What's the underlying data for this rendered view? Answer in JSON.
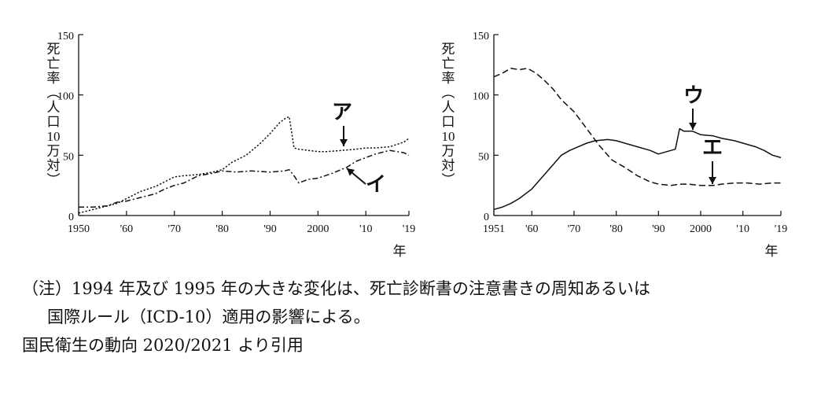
{
  "chart_data": [
    {
      "type": "line",
      "ylabel": [
        "死",
        "亡",
        "率",
        "︵",
        "人",
        "口",
        "10",
        "万",
        "対",
        "︶"
      ],
      "xunit": "年",
      "ylim": [
        0,
        150
      ],
      "yticks": [
        "0",
        "50",
        "100",
        "150"
      ],
      "xlim": [
        1950,
        2019
      ],
      "xticks": [
        {
          "value": 1950,
          "label": "1950"
        },
        {
          "value": 1960,
          "label": "'60"
        },
        {
          "value": 1970,
          "label": "'70"
        },
        {
          "value": 1980,
          "label": "'80"
        },
        {
          "value": 1990,
          "label": "'90"
        },
        {
          "value": 2000,
          "label": "2000"
        },
        {
          "value": 2010,
          "label": "'10"
        },
        {
          "value": 2019,
          "label": "'19"
        }
      ],
      "series": [
        {
          "style": "dotted",
          "x": [
            1950,
            1952,
            1955,
            1958,
            1960,
            1963,
            1966,
            1968,
            1970,
            1972,
            1975,
            1978,
            1980,
            1982,
            1985,
            1988,
            1990,
            1992,
            1993,
            1994,
            1995,
            1996,
            1998,
            2000,
            2002,
            2005,
            2008,
            2010,
            2012,
            2015,
            2018,
            2019
          ],
          "y": [
            2,
            4,
            7,
            10,
            14,
            20,
            24,
            28,
            32,
            33,
            34,
            36,
            38,
            44,
            50,
            60,
            68,
            77,
            80,
            82,
            56,
            55,
            54,
            53,
            53,
            54,
            55,
            56,
            56,
            57,
            61,
            64
          ]
        },
        {
          "style": "dash-dot",
          "x": [
            1950,
            1953,
            1956,
            1958,
            1960,
            1963,
            1966,
            1968,
            1970,
            1972,
            1975,
            1978,
            1980,
            1983,
            1986,
            1990,
            1993,
            1994,
            1995,
            1996,
            1998,
            2000,
            2003,
            2006,
            2008,
            2010,
            2012,
            2015,
            2018,
            2019
          ],
          "y": [
            7,
            7,
            8,
            11,
            12,
            15,
            18,
            22,
            25,
            27,
            33,
            35,
            37,
            36,
            37,
            36,
            37,
            38,
            33,
            27,
            30,
            31,
            35,
            40,
            45,
            48,
            51,
            54,
            52,
            50
          ]
        }
      ],
      "annotations": [
        {
          "label": "ア",
          "x": 2005,
          "y": 57
        },
        {
          "label": "イ",
          "x": 2004,
          "y": 40
        }
      ]
    },
    {
      "type": "line",
      "ylabel": [
        "死",
        "亡",
        "率",
        "︵",
        "人",
        "口",
        "10",
        "万",
        "対",
        "︶"
      ],
      "xunit": "年",
      "ylim": [
        0,
        150
      ],
      "yticks": [
        "0",
        "50",
        "100",
        "150"
      ],
      "xlim": [
        1951,
        2019
      ],
      "xticks": [
        {
          "value": 1951,
          "label": "1951"
        },
        {
          "value": 1960,
          "label": "'60"
        },
        {
          "value": 1970,
          "label": "'70"
        },
        {
          "value": 1980,
          "label": "'80"
        },
        {
          "value": 1990,
          "label": "'90"
        },
        {
          "value": 2000,
          "label": "2000"
        },
        {
          "value": 2010,
          "label": "'10"
        },
        {
          "value": 2019,
          "label": "'19"
        }
      ],
      "series": [
        {
          "style": "solid",
          "x": [
            1951,
            1953,
            1955,
            1957,
            1960,
            1962,
            1965,
            1967,
            1969,
            1971,
            1973,
            1975,
            1978,
            1980,
            1982,
            1985,
            1988,
            1990,
            1992,
            1994,
            1995,
            1996,
            1998,
            2000,
            2003,
            2005,
            2008,
            2010,
            2013,
            2015,
            2017,
            2019
          ],
          "y": [
            5,
            7,
            10,
            14,
            22,
            30,
            42,
            50,
            54,
            57,
            60,
            62,
            63,
            62,
            60,
            57,
            54,
            51,
            53,
            55,
            72,
            70,
            70,
            67,
            66,
            64,
            62,
            60,
            57,
            54,
            50,
            48
          ]
        },
        {
          "style": "dashed",
          "x": [
            1951,
            1953,
            1955,
            1957,
            1959,
            1961,
            1963,
            1965,
            1967,
            1970,
            1973,
            1976,
            1979,
            1982,
            1985,
            1988,
            1990,
            1993,
            1995,
            1997,
            2000,
            2003,
            2005,
            2008,
            2011,
            2014,
            2017,
            2019
          ],
          "y": [
            115,
            118,
            122,
            121,
            122,
            118,
            112,
            105,
            96,
            86,
            72,
            58,
            46,
            40,
            33,
            28,
            26,
            25,
            26,
            26,
            25,
            25,
            26,
            27,
            27,
            26,
            27,
            27
          ]
        }
      ],
      "annotations": [
        {
          "label": "ウ",
          "x": 1998,
          "y": 70
        },
        {
          "label": "エ",
          "x": 2003,
          "y": 26
        }
      ]
    }
  ],
  "notes": {
    "line1": "（注）1994 年及び 1995 年の大きな変化は、死亡診断書の注意書きの周知あるいは",
    "line2": "国際ルール（ICD-10）適用の影響による。",
    "source": "国民衛生の動向 2020/2021 より引用"
  }
}
